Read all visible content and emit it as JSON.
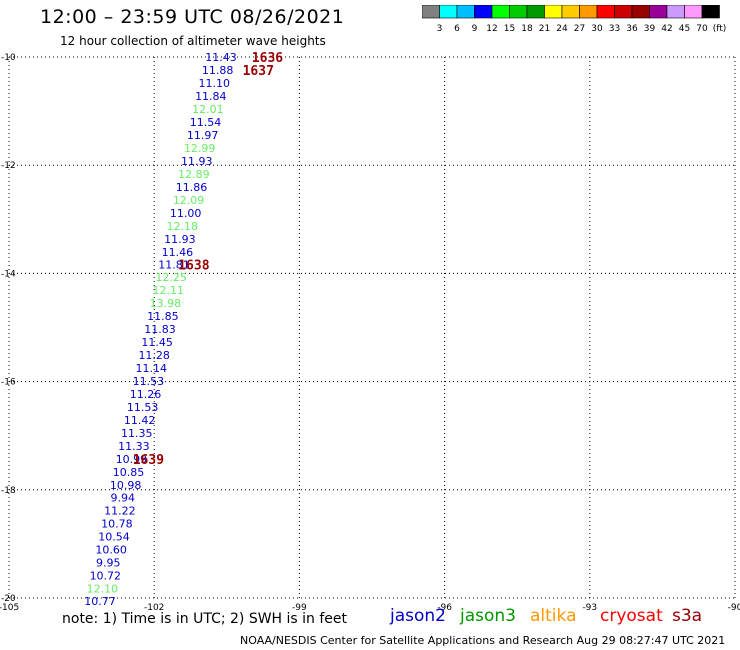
{
  "header": {
    "title": "12:00 – 23:59 UTC 08/26/2021",
    "subtitle": "12 hour collection of altimeter wave heights"
  },
  "colorbar": {
    "colors": [
      "#808080",
      "#00ffff",
      "#00bfff",
      "#0000ff",
      "#00ff00",
      "#00cc00",
      "#009900",
      "#ffff00",
      "#ffcc00",
      "#ff9900",
      "#ff0000",
      "#cc0000",
      "#990000",
      "#990099",
      "#cc99ff",
      "#ff99ff",
      "#000000"
    ],
    "labels": [
      "3",
      "6",
      "9",
      "12",
      "15",
      "18",
      "21",
      "24",
      "27",
      "30",
      "33",
      "36",
      "39",
      "42",
      "45",
      "70",
      "(ft)"
    ]
  },
  "chart_data": {
    "type": "scatter",
    "title": "12:00 – 23:59 UTC 08/26/2021",
    "subtitle": "12 hour collection of altimeter wave heights",
    "xlim": [
      -105,
      -90
    ],
    "ylim": [
      -20,
      -10
    ],
    "x_ticks": [
      "-105",
      "-102",
      "-99",
      "-96",
      "-93",
      "-90"
    ],
    "y_ticks": [
      "-10",
      "-12",
      "-14",
      "-16",
      "-18",
      "-20"
    ],
    "grid": true,
    "series": [
      {
        "name": "jason2",
        "color": "#0000cc"
      },
      {
        "name": "jason3",
        "color": "#009900"
      },
      {
        "name": "altika",
        "color": "#ff9900"
      },
      {
        "name": "cryosat",
        "color": "#ff0000"
      },
      {
        "name": "s3a",
        "color": "#990000"
      }
    ],
    "points": [
      {
        "x": -100.62,
        "y": -10.0,
        "label": "11.43",
        "color": "#0000cc"
      },
      {
        "x": -100.69,
        "y": -10.24,
        "label": "11.88",
        "color": "#0000cc"
      },
      {
        "x": -100.76,
        "y": -10.48,
        "label": "11.10",
        "color": "#0000cc"
      },
      {
        "x": -100.83,
        "y": -10.72,
        "label": "11.84",
        "color": "#0000cc"
      },
      {
        "x": -100.89,
        "y": -10.96,
        "label": "12.01",
        "color": "#66ee66"
      },
      {
        "x": -100.94,
        "y": -11.2,
        "label": "11.54",
        "color": "#0000cc"
      },
      {
        "x": -101.0,
        "y": -11.44,
        "label": "11.97",
        "color": "#0000cc"
      },
      {
        "x": -101.06,
        "y": -11.68,
        "label": "12.99",
        "color": "#66ee66"
      },
      {
        "x": -101.12,
        "y": -11.92,
        "label": "11.93",
        "color": "#0000cc"
      },
      {
        "x": -101.18,
        "y": -12.16,
        "label": "12.89",
        "color": "#66ee66"
      },
      {
        "x": -101.23,
        "y": -12.4,
        "label": "11.86",
        "color": "#0000cc"
      },
      {
        "x": -101.29,
        "y": -12.64,
        "label": "12.09",
        "color": "#66ee66"
      },
      {
        "x": -101.35,
        "y": -12.88,
        "label": "11.00",
        "color": "#0000cc"
      },
      {
        "x": -101.42,
        "y": -13.12,
        "label": "12.18",
        "color": "#66ee66"
      },
      {
        "x": -101.47,
        "y": -13.36,
        "label": "11.93",
        "color": "#0000cc"
      },
      {
        "x": -101.52,
        "y": -13.6,
        "label": "11.46",
        "color": "#0000cc"
      },
      {
        "x": -101.59,
        "y": -13.84,
        "label": "11.81",
        "color": "#0000cc"
      },
      {
        "x": -101.65,
        "y": -14.07,
        "label": "12.25",
        "color": "#66ee66"
      },
      {
        "x": -101.71,
        "y": -14.31,
        "label": "12.11",
        "color": "#66ee66"
      },
      {
        "x": -101.77,
        "y": -14.55,
        "label": "13.98",
        "color": "#66ee66"
      },
      {
        "x": -101.82,
        "y": -14.79,
        "label": "11.85",
        "color": "#0000cc"
      },
      {
        "x": -101.88,
        "y": -15.03,
        "label": "11.83",
        "color": "#0000cc"
      },
      {
        "x": -101.94,
        "y": -15.27,
        "label": "11.45",
        "color": "#0000cc"
      },
      {
        "x": -102.0,
        "y": -15.51,
        "label": "11.28",
        "color": "#0000cc"
      },
      {
        "x": -102.06,
        "y": -15.75,
        "label": "11.14",
        "color": "#0000cc"
      },
      {
        "x": -102.12,
        "y": -15.99,
        "label": "11.53",
        "color": "#0000cc"
      },
      {
        "x": -102.18,
        "y": -16.23,
        "label": "11.26",
        "color": "#0000cc"
      },
      {
        "x": -102.24,
        "y": -16.47,
        "label": "11.53",
        "color": "#0000cc"
      },
      {
        "x": -102.3,
        "y": -16.71,
        "label": "11.42",
        "color": "#0000cc"
      },
      {
        "x": -102.36,
        "y": -16.95,
        "label": "11.35",
        "color": "#0000cc"
      },
      {
        "x": -102.42,
        "y": -17.19,
        "label": "11.33",
        "color": "#0000cc"
      },
      {
        "x": -102.47,
        "y": -17.43,
        "label": "10.99",
        "color": "#0000cc"
      },
      {
        "x": -102.53,
        "y": -17.67,
        "label": "10.85",
        "color": "#0000cc"
      },
      {
        "x": -102.59,
        "y": -17.91,
        "label": "10.98",
        "color": "#0000cc"
      },
      {
        "x": -102.65,
        "y": -18.14,
        "label": "9.94",
        "color": "#0000cc"
      },
      {
        "x": -102.71,
        "y": -18.38,
        "label": "11.22",
        "color": "#0000cc"
      },
      {
        "x": -102.77,
        "y": -18.62,
        "label": "10.78",
        "color": "#0000cc"
      },
      {
        "x": -102.83,
        "y": -18.86,
        "label": "10.54",
        "color": "#0000cc"
      },
      {
        "x": -102.89,
        "y": -19.1,
        "label": "10.60",
        "color": "#0000cc"
      },
      {
        "x": -102.95,
        "y": -19.34,
        "label": "9.95",
        "color": "#0000cc"
      },
      {
        "x": -103.01,
        "y": -19.58,
        "label": "10.72",
        "color": "#0000cc"
      },
      {
        "x": -103.07,
        "y": -19.82,
        "label": "12.10",
        "color": "#66ee66"
      },
      {
        "x": -103.12,
        "y": -20.06,
        "label": "10.77",
        "color": "#0000cc"
      }
    ],
    "time_labels": [
      {
        "x": -99.66,
        "y": -10.0,
        "label": "1636",
        "color": "#990000"
      },
      {
        "x": -99.85,
        "y": -10.24,
        "label": "1637",
        "color": "#990000"
      },
      {
        "x": -101.18,
        "y": -13.84,
        "label": "1638",
        "color": "#990000"
      },
      {
        "x": -102.12,
        "y": -17.43,
        "label": "1639",
        "color": "#990000"
      }
    ]
  },
  "note": "note: 1) Time is in UTC; 2) SWH is in feet",
  "footer": "NOAA/NESDIS Center for Satellite Applications and Research    Aug 29 08:27:47 UTC 2021"
}
